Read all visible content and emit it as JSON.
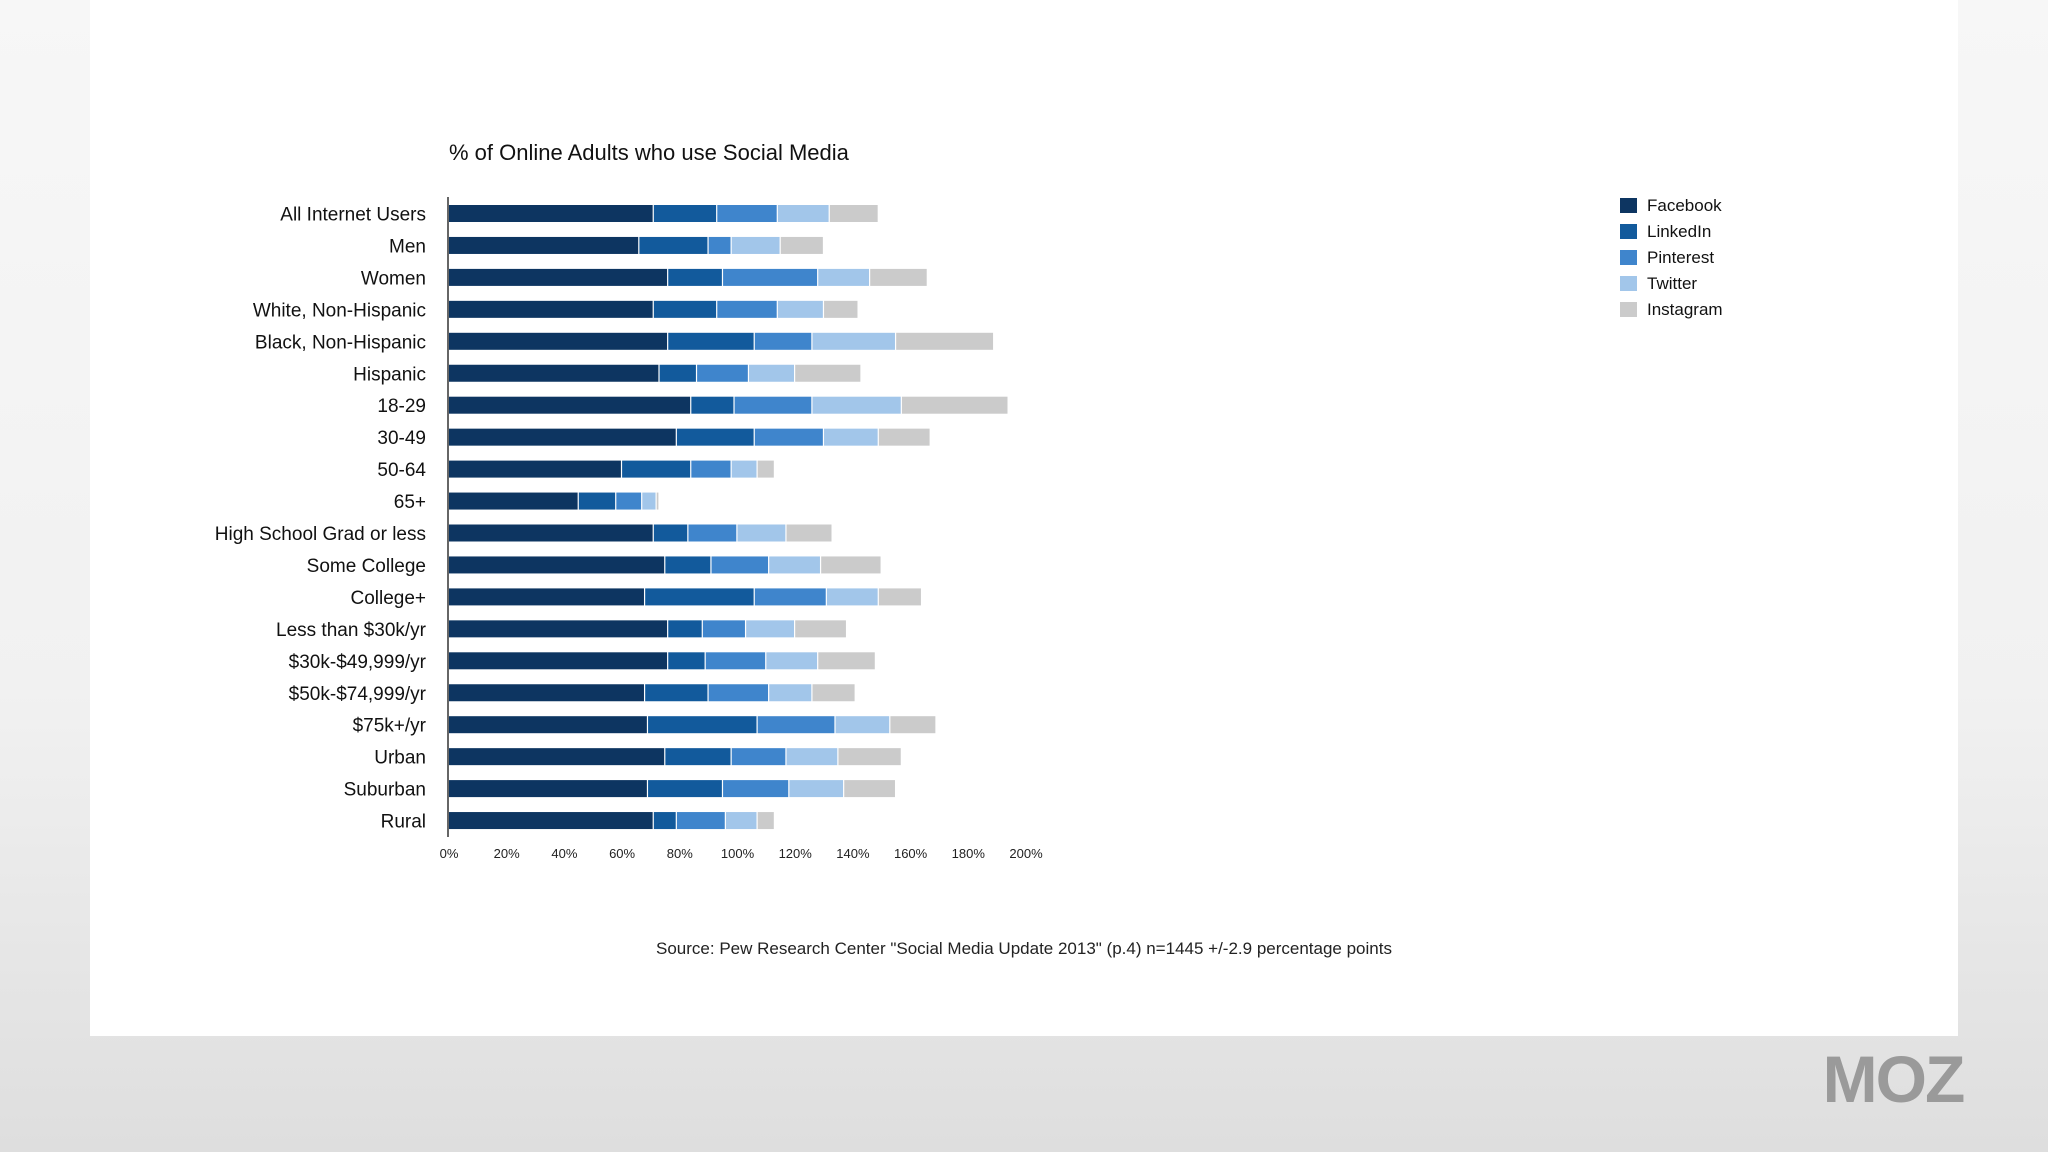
{
  "chart_data": {
    "type": "bar",
    "orientation": "horizontal",
    "stacked": true,
    "title": "% of Online Adults who use Social Media",
    "categories": [
      "All Internet Users",
      "Men",
      "Women",
      "White, Non-Hispanic",
      "Black, Non-Hispanic",
      "Hispanic",
      "18-29",
      "30-49",
      "50-64",
      "65+",
      "High School Grad or less",
      "Some College",
      "College+",
      "Less than $30k/yr",
      "$30k-$49,999/yr",
      "$50k-$74,999/yr",
      "$75k+/yr",
      "Urban",
      "Suburban",
      "Rural"
    ],
    "series": [
      {
        "name": "Facebook",
        "color": "#0d3561",
        "values": [
          71,
          66,
          76,
          71,
          76,
          73,
          84,
          79,
          60,
          45,
          71,
          75,
          68,
          76,
          76,
          68,
          69,
          75,
          69,
          71
        ]
      },
      {
        "name": "LinkedIn",
        "color": "#125a9c",
        "values": [
          22,
          24,
          19,
          22,
          30,
          13,
          15,
          27,
          24,
          13,
          12,
          16,
          38,
          12,
          13,
          22,
          38,
          23,
          26,
          8
        ]
      },
      {
        "name": "Pinterest",
        "color": "#3f85cc",
        "values": [
          21,
          8,
          33,
          21,
          20,
          18,
          27,
          24,
          14,
          9,
          17,
          20,
          25,
          15,
          21,
          21,
          27,
          19,
          23,
          17
        ]
      },
      {
        "name": "Twitter",
        "color": "#a2c6ea",
        "values": [
          18,
          17,
          18,
          16,
          29,
          16,
          31,
          19,
          9,
          5,
          17,
          18,
          18,
          17,
          18,
          15,
          19,
          18,
          19,
          11
        ]
      },
      {
        "name": "Instagram",
        "color": "#cbcbcb",
        "values": [
          17,
          15,
          20,
          12,
          34,
          23,
          37,
          18,
          6,
          1,
          16,
          21,
          15,
          18,
          20,
          15,
          16,
          22,
          18,
          6
        ]
      }
    ],
    "xlim": [
      0,
      200
    ],
    "xticks": [
      "0%",
      "20%",
      "40%",
      "60%",
      "80%",
      "100%",
      "120%",
      "140%",
      "160%",
      "180%",
      "200%"
    ],
    "legend": "top-right",
    "grid": false,
    "source": "Source: Pew Research Center \"Social Media Update 2013\" (p.4) n=1445 +/-2.9 percentage points"
  },
  "brand": {
    "logo_text": "MOZ",
    "logo_color": "#9a9a9a"
  }
}
